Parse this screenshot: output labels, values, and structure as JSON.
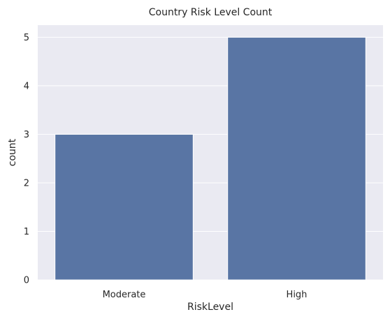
{
  "chart_data": {
    "type": "bar",
    "title": "Country Risk Level Count",
    "xlabel": "RiskLevel",
    "ylabel": "count",
    "categories": [
      "Moderate",
      "High"
    ],
    "values": [
      3,
      5
    ],
    "ylim": [
      0,
      5.25
    ],
    "yticks": [
      "0",
      "1",
      "2",
      "3",
      "4",
      "5"
    ],
    "grid": true,
    "legend": "none",
    "colors": {
      "bar": "#5975a4",
      "plot_background": "#eaeaf2",
      "grid": "#ffffff",
      "text": "#262626"
    }
  }
}
